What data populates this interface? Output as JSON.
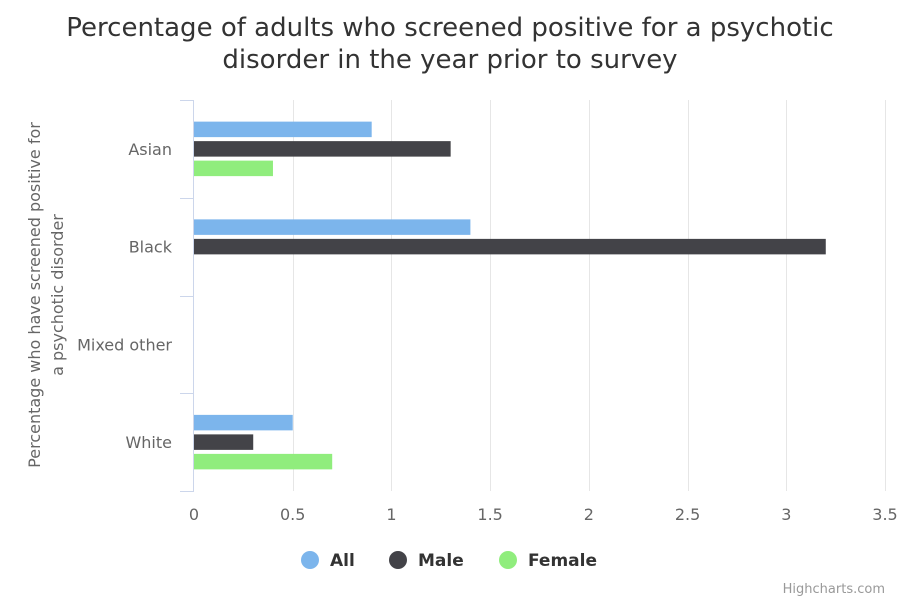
{
  "chart_data": {
    "type": "bar",
    "orientation": "horizontal",
    "title": "Percentage of adults who screened positive for a psychotic disorder in the year prior to survey",
    "title_lines": [
      "Percentage of adults who screened positive for a psychotic",
      "disorder in the year prior to survey"
    ],
    "ylabel": "Percentage who have screened positive for a psychotic disorder",
    "ylabel_lines": [
      "Percentage who have screened positive for",
      "a psychotic disorder"
    ],
    "xlabel": "",
    "categories": [
      "Asian",
      "Black",
      "Mixed other",
      "White"
    ],
    "series": [
      {
        "name": "All",
        "color": "#7cb5ec",
        "values": [
          0.9,
          1.4,
          null,
          0.5
        ]
      },
      {
        "name": "Male",
        "color": "#434348",
        "values": [
          1.3,
          3.2,
          null,
          0.3
        ]
      },
      {
        "name": "Female",
        "color": "#90ed7d",
        "values": [
          0.4,
          null,
          null,
          0.7
        ]
      }
    ],
    "xlim": [
      0,
      3.5
    ],
    "xticks": [
      0,
      0.5,
      1,
      1.5,
      2,
      2.5,
      3,
      3.5
    ],
    "xtick_labels": [
      "0",
      "0.5",
      "1",
      "1.5",
      "2",
      "2.5",
      "3",
      "3.5"
    ],
    "grid": true,
    "legend_position": "bottom-center"
  },
  "credits": "Highcharts.com"
}
